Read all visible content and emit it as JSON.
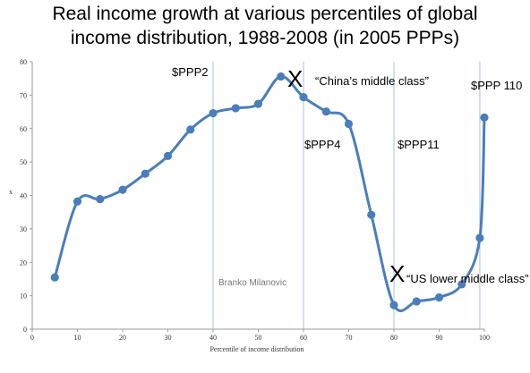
{
  "chart_data": {
    "type": "line",
    "title_lines": [
      "Real income growth at various percentiles of global",
      "income distribution, 1988-2008 (in 2005 PPPs)"
    ],
    "xlabel": "Percentile of income distribution",
    "ylabel": "x",
    "xlim": [
      0,
      100
    ],
    "ylim": [
      0,
      80
    ],
    "xticks": [
      0,
      10,
      20,
      30,
      40,
      50,
      60,
      70,
      80,
      90,
      100
    ],
    "yticks": [
      0,
      10,
      20,
      30,
      40,
      50,
      60,
      70,
      80
    ],
    "grid": false,
    "series": [
      {
        "color": "#4a7ebb",
        "x": [
          5,
          10,
          15,
          20,
          25,
          30,
          35,
          40,
          45,
          50,
          55,
          60,
          65,
          70,
          75,
          80,
          85,
          90,
          95,
          99,
          100
        ],
        "y": [
          15.5,
          38.2,
          38.9,
          41.7,
          46.5,
          51.8,
          59.7,
          64.6,
          66.1,
          67.4,
          75.6,
          69.4,
          65.1,
          61.4,
          34.2,
          7.2,
          8.3,
          9.5,
          13.4,
          27.3,
          63.3
        ]
      }
    ],
    "vlines": [
      40,
      60,
      80,
      99
    ],
    "annotations": {
      "ppp2": "$PPP2",
      "ppp4": "$PPP4",
      "ppp11": "$PPP11",
      "ppp110": "$PPP 110",
      "china_marker": "X",
      "china_label": "“China’s middle class”",
      "us_marker": "X",
      "us_label": "“US lower middle class”",
      "watermark": "Branko Milanovic"
    }
  }
}
